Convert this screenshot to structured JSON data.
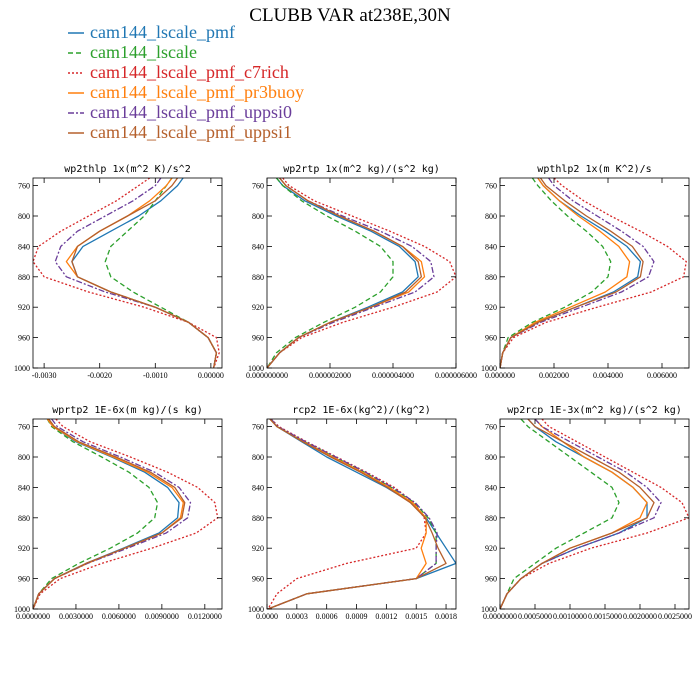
{
  "title": "CLUBB VAR at238E,30N",
  "legend": [
    {
      "name": "cam144_lscale_pmf",
      "color": "#1f77b4",
      "dash": ""
    },
    {
      "name": "cam144_lscale",
      "color": "#2ca02c",
      "dash": "5,3"
    },
    {
      "name": "cam144_lscale_pmf_c7rich",
      "color": "#d62728",
      "dash": "2,2"
    },
    {
      "name": "cam144_lscale_pmf_pr3buoy",
      "color": "#ff7f0e",
      "dash": ""
    },
    {
      "name": "cam144_lscale_pmf_uppsi0",
      "color": "#6a3d9a",
      "dash": "6,2,2,2"
    },
    {
      "name": "cam144_lscale_pmf_uppsi1",
      "color": "#b5602c",
      "dash": ""
    }
  ],
  "chart_data": [
    {
      "type": "line",
      "title": "wp2thlp  1x(m^2 K)/s^2",
      "xlim": [
        -0.0032,
        0.0002
      ],
      "ylim": [
        1000,
        750
      ],
      "xticks": [
        -0.003,
        -0.002,
        -0.001,
        0.0
      ],
      "xtick_labels": [
        "-0.0030",
        "-0.0020",
        "-0.0010",
        "0.00000"
      ],
      "yticks": [
        760,
        800,
        840,
        880,
        920,
        960,
        1000
      ],
      "y": [
        750,
        760,
        780,
        800,
        820,
        840,
        860,
        880,
        900,
        920,
        940,
        960,
        980,
        1000
      ],
      "series": [
        {
          "name": "cam144_lscale_pmf",
          "values": [
            -0.0005,
            -0.0006,
            -0.0009,
            -0.0013,
            -0.0018,
            -0.0023,
            -0.0025,
            -0.0024,
            -0.0018,
            -0.001,
            -0.0004,
            -5e-05,
            0.0001,
            5e-05
          ]
        },
        {
          "name": "cam144_lscale",
          "values": [
            -0.0007,
            -0.0008,
            -0.001,
            -0.0012,
            -0.0015,
            -0.0018,
            -0.0019,
            -0.0018,
            -0.0014,
            -0.0009,
            -0.0004,
            -5e-05,
            0.0001,
            5e-05
          ]
        },
        {
          "name": "cam144_lscale_pmf_c7rich",
          "values": [
            -0.0011,
            -0.0013,
            -0.0017,
            -0.0022,
            -0.0027,
            -0.0031,
            -0.0032,
            -0.003,
            -0.0022,
            -0.0012,
            -0.0004,
            0.0001,
            0.00015,
            5e-05
          ]
        },
        {
          "name": "cam144_lscale_pmf_pr3buoy",
          "values": [
            -0.0007,
            -0.0008,
            -0.0011,
            -0.0015,
            -0.002,
            -0.0024,
            -0.0026,
            -0.0024,
            -0.0018,
            -0.001,
            -0.0004,
            -5e-05,
            0.0001,
            5e-05
          ]
        },
        {
          "name": "cam144_lscale_pmf_uppsi0",
          "values": [
            -0.0009,
            -0.001,
            -0.0014,
            -0.0019,
            -0.0024,
            -0.0027,
            -0.0028,
            -0.0026,
            -0.0019,
            -0.001,
            -0.0004,
            -5e-05,
            0.0001,
            5e-05
          ]
        },
        {
          "name": "cam144_lscale_pmf_uppsi1",
          "values": [
            -0.0006,
            -0.0007,
            -0.001,
            -0.0015,
            -0.002,
            -0.0024,
            -0.0025,
            -0.0024,
            -0.0018,
            -0.001,
            -0.0004,
            -5e-05,
            0.0001,
            5e-05
          ]
        }
      ]
    },
    {
      "type": "line",
      "title": "wp2rtp  1x(m^2 kg)/(s^2 kg)",
      "xlim": [
        0,
        6e-06
      ],
      "ylim": [
        1000,
        750
      ],
      "xticks": [
        0,
        2e-06,
        4e-06,
        6e-06
      ],
      "xtick_labels": [
        "0.000000000",
        "0.000002000",
        "0.000004000",
        "0.000006000"
      ],
      "yticks": [
        760,
        800,
        840,
        880,
        920,
        960,
        1000
      ],
      "y": [
        750,
        760,
        780,
        800,
        820,
        840,
        860,
        880,
        900,
        920,
        940,
        960,
        980,
        1000
      ],
      "series": [
        {
          "name": "cam144_lscale_pmf",
          "values": [
            3e-07,
            5e-07,
            1.2e-06,
            2.2e-06,
            3.3e-06,
            4.2e-06,
            4.7e-06,
            4.8e-06,
            4.3e-06,
            3.2e-06,
            2e-06,
            1e-06,
            4e-07,
            0.0
          ]
        },
        {
          "name": "cam144_lscale",
          "values": [
            3e-07,
            5e-07,
            1.1e-06,
            1.9e-06,
            2.8e-06,
            3.6e-06,
            4e-06,
            4e-06,
            3.6e-06,
            2.8e-06,
            1.8e-06,
            9e-07,
            3e-07,
            0.0
          ]
        },
        {
          "name": "cam144_lscale_pmf_c7rich",
          "values": [
            5e-07,
            7e-07,
            1.5e-06,
            2.7e-06,
            3.9e-06,
            5e-06,
            5.8e-06,
            6e-06,
            5.4e-06,
            4e-06,
            2.4e-06,
            1.1e-06,
            4e-07,
            0.0
          ]
        },
        {
          "name": "cam144_lscale_pmf_pr3buoy",
          "values": [
            4e-07,
            6e-07,
            1.3e-06,
            2.3e-06,
            3.4e-06,
            4.3e-06,
            4.9e-06,
            5e-06,
            4.5e-06,
            3.3e-06,
            2e-06,
            1e-06,
            4e-07,
            0.0
          ]
        },
        {
          "name": "cam144_lscale_pmf_uppsi0",
          "values": [
            4e-07,
            6e-07,
            1.3e-06,
            2.4e-06,
            3.6e-06,
            4.6e-06,
            5.2e-06,
            5.3e-06,
            4.7e-06,
            3.4e-06,
            2.1e-06,
            1e-06,
            4e-07,
            0.0
          ]
        },
        {
          "name": "cam144_lscale_pmf_uppsi1",
          "values": [
            4e-07,
            6e-07,
            1.3e-06,
            2.3e-06,
            3.4e-06,
            4.3e-06,
            4.8e-06,
            4.9e-06,
            4.4e-06,
            3.3e-06,
            2e-06,
            1e-06,
            4e-07,
            0.0
          ]
        }
      ]
    },
    {
      "type": "line",
      "title": "wpthlp2  1x(m K^2)/s",
      "xlim": [
        0,
        0.007
      ],
      "ylim": [
        1000,
        750
      ],
      "xticks": [
        0,
        0.002,
        0.004,
        0.006
      ],
      "xtick_labels": [
        "0.000000",
        "0.002000",
        "0.004000",
        "0.006000"
      ],
      "yticks": [
        760,
        800,
        840,
        880,
        920,
        960,
        1000
      ],
      "y": [
        750,
        760,
        780,
        800,
        820,
        840,
        860,
        880,
        900,
        920,
        940,
        960,
        980,
        1000
      ],
      "series": [
        {
          "name": "cam144_lscale_pmf",
          "values": [
            0.0014,
            0.0016,
            0.0022,
            0.003,
            0.0039,
            0.0047,
            0.0052,
            0.0051,
            0.0042,
            0.0028,
            0.0014,
            0.0004,
            0.0001,
            0.0
          ]
        },
        {
          "name": "cam144_lscale",
          "values": [
            0.0012,
            0.0014,
            0.0019,
            0.0025,
            0.0032,
            0.0038,
            0.0041,
            0.004,
            0.0034,
            0.0024,
            0.0012,
            0.0003,
            0.0001,
            0.0
          ]
        },
        {
          "name": "cam144_lscale_pmf_c7rich",
          "values": [
            0.002,
            0.0023,
            0.0031,
            0.0041,
            0.0052,
            0.0062,
            0.0069,
            0.0068,
            0.0056,
            0.0036,
            0.0017,
            0.0005,
            0.0001,
            0.0
          ]
        },
        {
          "name": "cam144_lscale_pmf_pr3buoy",
          "values": [
            0.0014,
            0.0016,
            0.0022,
            0.0029,
            0.0037,
            0.0044,
            0.0048,
            0.0047,
            0.0039,
            0.0026,
            0.0013,
            0.0004,
            0.0001,
            0.0
          ]
        },
        {
          "name": "cam144_lscale_pmf_uppsi0",
          "values": [
            0.0018,
            0.002,
            0.0027,
            0.0036,
            0.0045,
            0.0053,
            0.0057,
            0.0055,
            0.0045,
            0.003,
            0.0015,
            0.0004,
            0.0001,
            0.0
          ]
        },
        {
          "name": "cam144_lscale_pmf_uppsi1",
          "values": [
            0.0015,
            0.0017,
            0.0024,
            0.0032,
            0.0041,
            0.0049,
            0.0053,
            0.0052,
            0.0043,
            0.0028,
            0.0014,
            0.0004,
            0.0001,
            0.0
          ]
        }
      ]
    },
    {
      "type": "line",
      "title": "wprtp2  1E-6x(m kg)/(s kg)",
      "xlim": [
        0,
        0.0132
      ],
      "ylim": [
        1000,
        750
      ],
      "xticks": [
        0,
        0.003,
        0.006,
        0.009,
        0.012
      ],
      "xtick_labels": [
        "0.0000000",
        "0.0030000",
        "0.0060000",
        "0.0090000",
        "0.0120000"
      ],
      "yticks": [
        760,
        800,
        840,
        880,
        920,
        960,
        1000
      ],
      "y": [
        750,
        760,
        780,
        800,
        820,
        840,
        860,
        880,
        900,
        920,
        940,
        960,
        980,
        1000
      ],
      "series": [
        {
          "name": "cam144_lscale_pmf",
          "values": [
            0.001,
            0.0014,
            0.003,
            0.0055,
            0.0078,
            0.0094,
            0.0102,
            0.0101,
            0.0088,
            0.0063,
            0.0037,
            0.0015,
            0.0004,
            0.0
          ]
        },
        {
          "name": "cam144_lscale",
          "values": [
            0.001,
            0.0013,
            0.0028,
            0.0048,
            0.0067,
            0.0081,
            0.0087,
            0.0085,
            0.0073,
            0.0054,
            0.0032,
            0.0013,
            0.0004,
            0.0
          ]
        },
        {
          "name": "cam144_lscale_pmf_c7rich",
          "values": [
            0.0016,
            0.0021,
            0.004,
            0.0068,
            0.0094,
            0.0115,
            0.0127,
            0.0129,
            0.0114,
            0.0083,
            0.0048,
            0.0019,
            0.0005,
            0.0
          ]
        },
        {
          "name": "cam144_lscale_pmf_pr3buoy",
          "values": [
            0.001,
            0.0014,
            0.0031,
            0.0056,
            0.008,
            0.0097,
            0.0105,
            0.0103,
            0.009,
            0.0064,
            0.0038,
            0.0015,
            0.0004,
            0.0
          ]
        },
        {
          "name": "cam144_lscale_pmf_uppsi0",
          "values": [
            0.0013,
            0.0017,
            0.0035,
            0.0061,
            0.0085,
            0.0102,
            0.011,
            0.0108,
            0.0093,
            0.0066,
            0.0038,
            0.0015,
            0.0004,
            0.0
          ]
        },
        {
          "name": "cam144_lscale_pmf_uppsi1",
          "values": [
            0.0011,
            0.0015,
            0.0032,
            0.0058,
            0.0082,
            0.0099,
            0.0106,
            0.0104,
            0.009,
            0.0064,
            0.0037,
            0.0015,
            0.0004,
            0.0
          ]
        }
      ]
    },
    {
      "type": "line",
      "title": "rcp2  1E-6x(kg^2)/(kg^2)",
      "xlim": [
        0,
        0.0019
      ],
      "ylim": [
        1000,
        750
      ],
      "xticks": [
        0,
        0.0003,
        0.0006,
        0.0009,
        0.0012,
        0.0015,
        0.0018
      ],
      "xtick_labels": [
        "0.0000",
        "0.0003",
        "0.0006",
        "0.0009",
        "0.0012",
        "0.0015",
        "0.0018"
      ],
      "yticks": [
        760,
        800,
        840,
        880,
        920,
        960,
        1000
      ],
      "y": [
        750,
        760,
        780,
        800,
        820,
        840,
        860,
        880,
        900,
        920,
        940,
        960,
        980,
        1000
      ],
      "series": [
        {
          "name": "cam144_lscale_pmf",
          "values": [
            3e-05,
            0.0001,
            0.00035,
            0.0006,
            0.0009,
            0.0012,
            0.00145,
            0.0016,
            0.0017,
            0.0018,
            0.0019,
            0.0015,
            0.0004,
            1e-05
          ]
        },
        {
          "name": "cam144_lscale",
          "values": [
            3e-05,
            0.0001,
            0.00038,
            0.00068,
            0.00098,
            0.00125,
            0.00148,
            0.00162,
            0.0017,
            0.0017,
            0.0017,
            0.0015,
            0.0004,
            1e-05
          ]
        },
        {
          "name": "cam144_lscale_pmf_c7rich",
          "values": [
            4e-05,
            0.00012,
            0.0004,
            0.0007,
            0.001,
            0.00128,
            0.00148,
            0.00158,
            0.0016,
            0.0015,
            0.0008,
            0.0003,
            0.0001,
            1e-05
          ]
        },
        {
          "name": "cam144_lscale_pmf_pr3buoy",
          "values": [
            3e-05,
            0.0001,
            0.00037,
            0.00066,
            0.00096,
            0.00123,
            0.00146,
            0.0016,
            0.0016,
            0.00155,
            0.0016,
            0.0015,
            0.0004,
            1e-05
          ]
        },
        {
          "name": "cam144_lscale_pmf_uppsi0",
          "values": [
            4e-05,
            0.00011,
            0.00039,
            0.00069,
            0.00099,
            0.00126,
            0.00149,
            0.00163,
            0.00171,
            0.0017,
            0.0017,
            0.0015,
            0.0004,
            1e-05
          ]
        },
        {
          "name": "cam144_lscale_pmf_uppsi1",
          "values": [
            3e-05,
            0.0001,
            0.00036,
            0.00064,
            0.00094,
            0.00121,
            0.00144,
            0.00159,
            0.00166,
            0.00172,
            0.0018,
            0.0015,
            0.0004,
            1e-05
          ]
        }
      ]
    },
    {
      "type": "line",
      "title": "wp2rcp  1E-3x(m^2 kg)/(s^2 kg)",
      "xlim": [
        0,
        0.0027
      ],
      "ylim": [
        1000,
        750
      ],
      "xticks": [
        0,
        0.0005,
        0.001,
        0.0015,
        0.002,
        0.0025
      ],
      "xtick_labels": [
        "0.0000000",
        "0.0005000",
        "0.0010000",
        "0.0015000",
        "0.0020000",
        "0.0025000"
      ],
      "yticks": [
        760,
        800,
        840,
        880,
        920,
        960,
        1000
      ],
      "y": [
        750,
        760,
        780,
        800,
        820,
        840,
        860,
        880,
        900,
        920,
        940,
        960,
        980,
        1000
      ],
      "series": [
        {
          "name": "cam144_lscale_pmf",
          "values": [
            0.0004,
            0.0005,
            0.0008,
            0.0012,
            0.0016,
            0.0019,
            0.0021,
            0.0021,
            0.0017,
            0.0011,
            0.0006,
            0.0003,
            0.0001,
            0.0
          ]
        },
        {
          "name": "cam144_lscale",
          "values": [
            0.0003,
            0.0004,
            0.0007,
            0.001,
            0.0013,
            0.0016,
            0.0017,
            0.0016,
            0.0012,
            0.0008,
            0.0005,
            0.0002,
            0.0001,
            0.0
          ]
        },
        {
          "name": "cam144_lscale_pmf_c7rich",
          "values": [
            0.0006,
            0.0007,
            0.0011,
            0.0015,
            0.0019,
            0.0023,
            0.0026,
            0.0027,
            0.0021,
            0.0013,
            0.0007,
            0.0003,
            0.0001,
            0.0
          ]
        },
        {
          "name": "cam144_lscale_pmf_pr3buoy",
          "values": [
            0.0005,
            0.0006,
            0.0009,
            0.0012,
            0.0016,
            0.0019,
            0.0021,
            0.002,
            0.0016,
            0.001,
            0.0006,
            0.0003,
            0.0001,
            0.0
          ]
        },
        {
          "name": "cam144_lscale_pmf_uppsi0",
          "values": [
            0.0005,
            0.0006,
            0.001,
            0.0014,
            0.0018,
            0.0021,
            0.0023,
            0.0022,
            0.0017,
            0.0011,
            0.0006,
            0.0003,
            0.0001,
            0.0
          ]
        },
        {
          "name": "cam144_lscale_pmf_uppsi1",
          "values": [
            0.0004,
            0.0005,
            0.0009,
            0.0013,
            0.0017,
            0.002,
            0.0022,
            0.0021,
            0.0016,
            0.001,
            0.0006,
            0.0003,
            0.0001,
            0.0
          ]
        }
      ]
    }
  ]
}
